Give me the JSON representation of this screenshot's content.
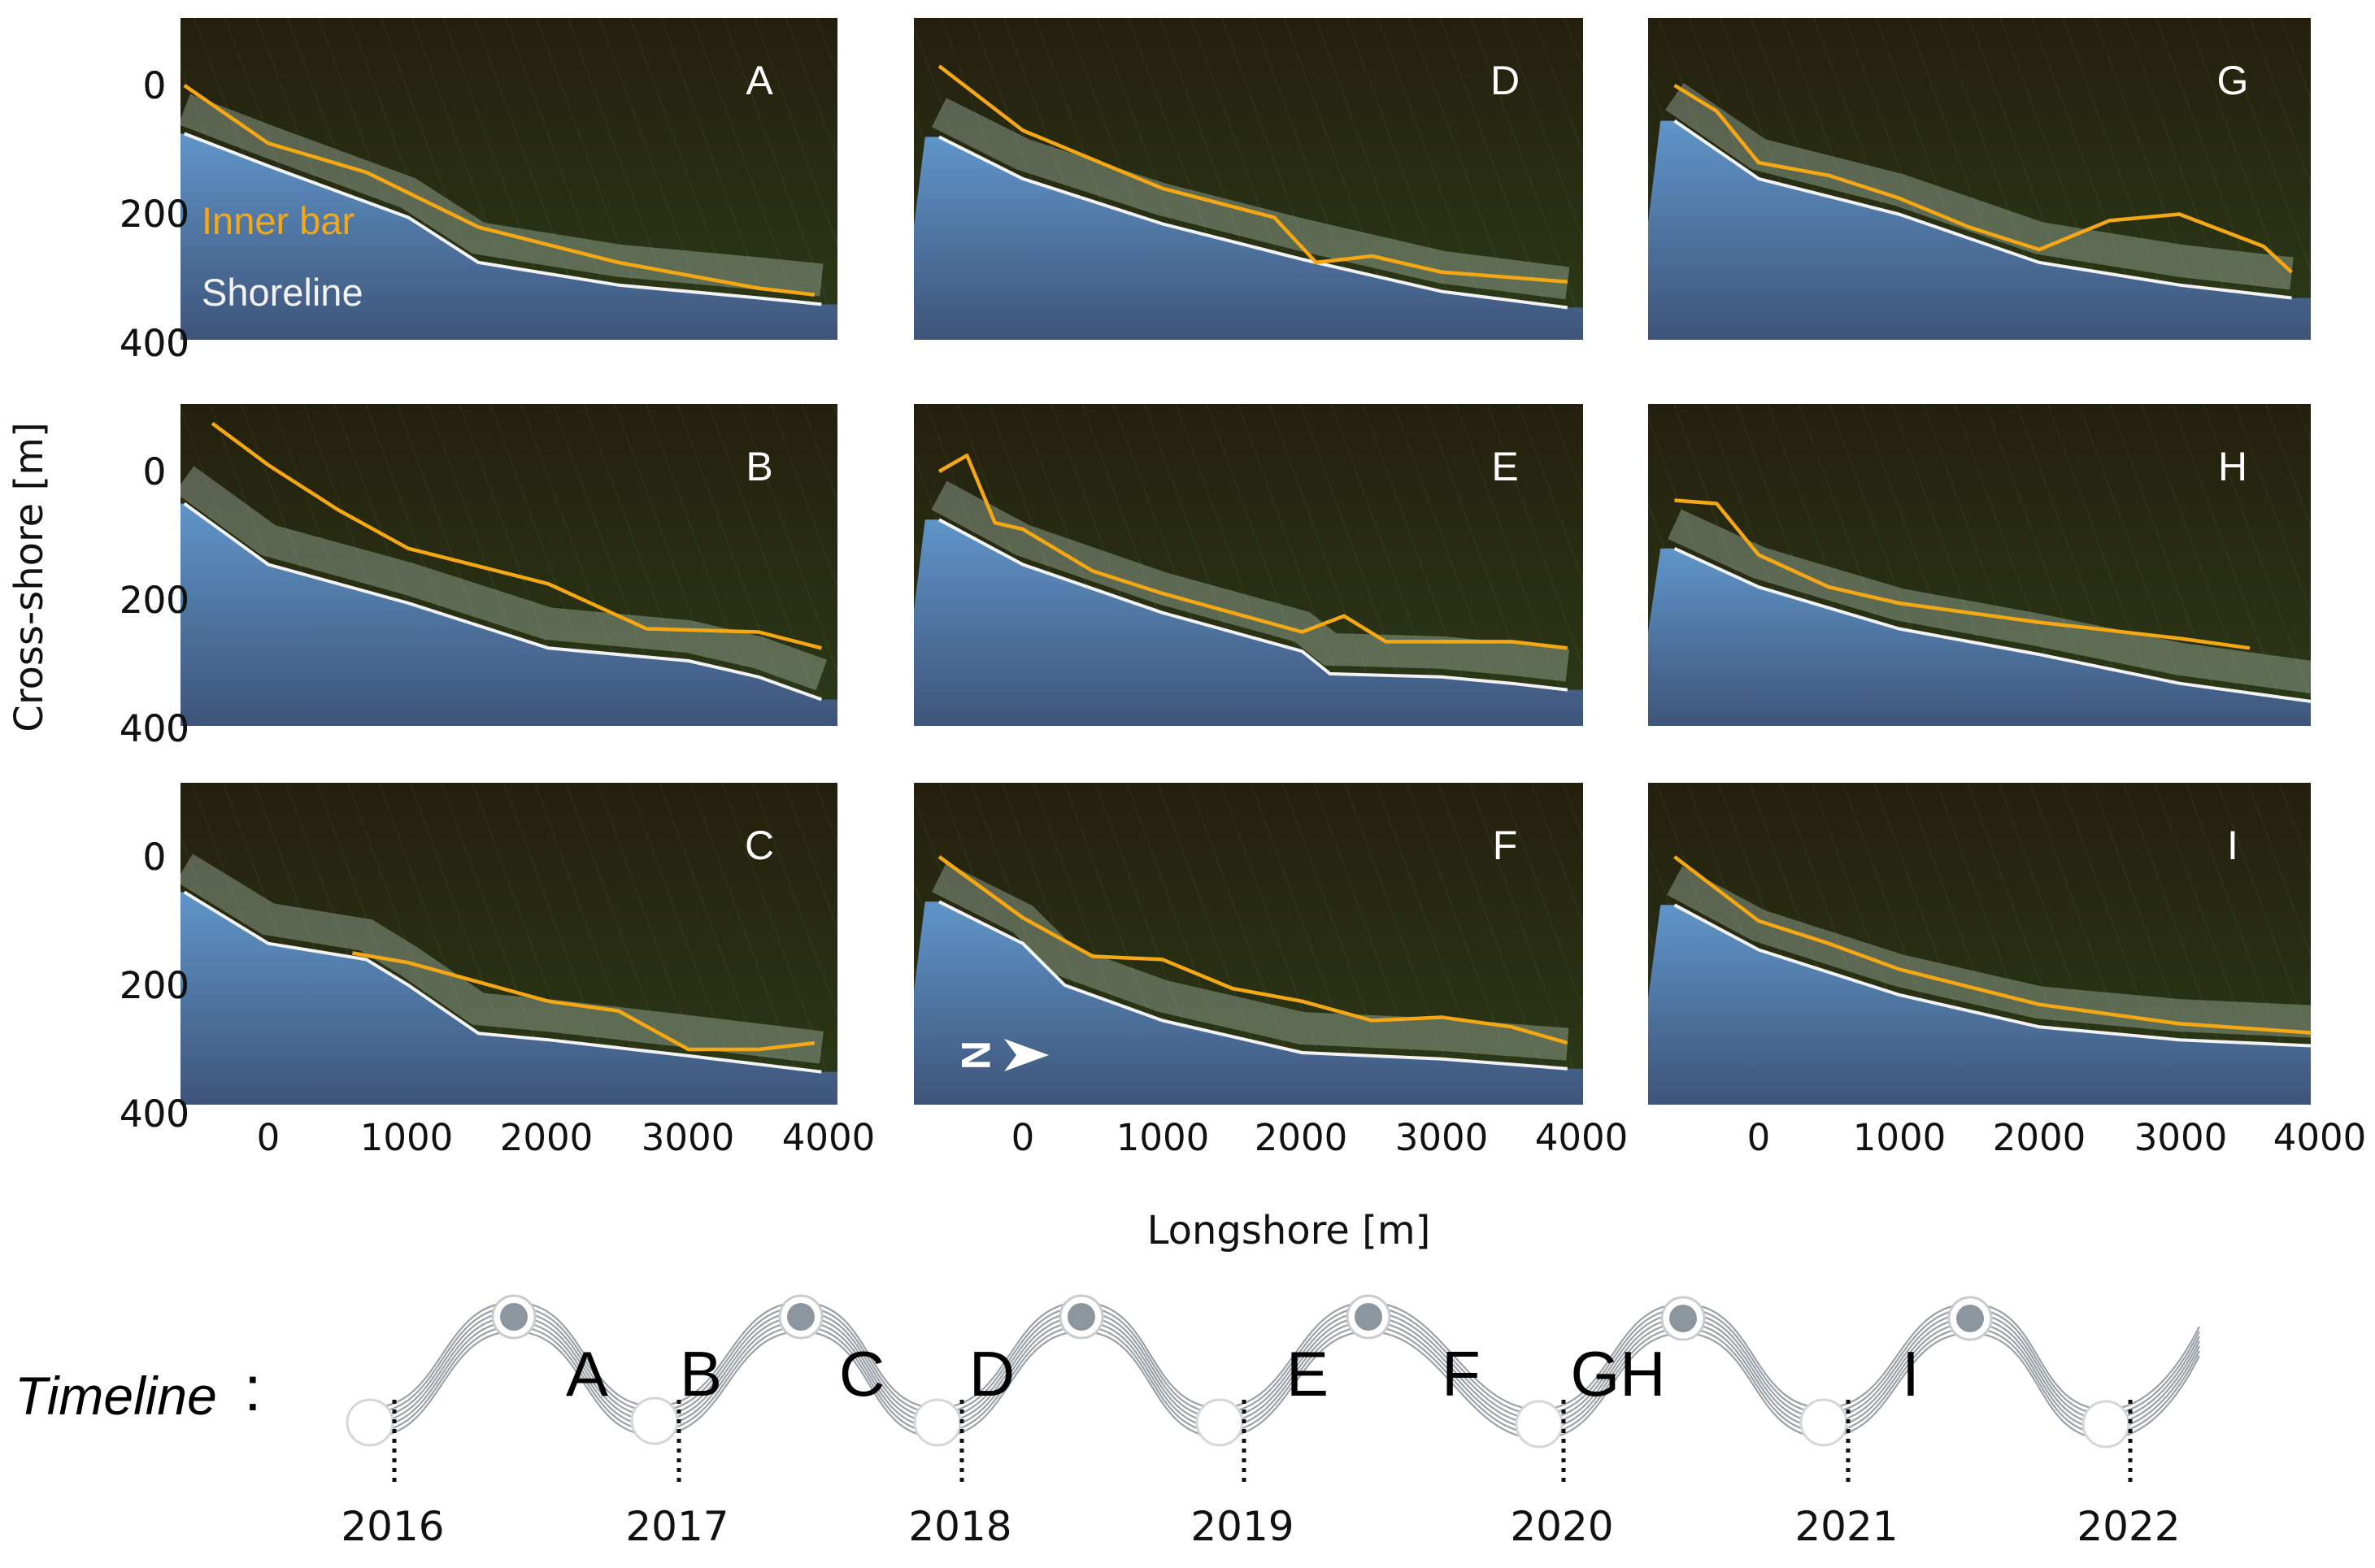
{
  "chart_data": {
    "type": "line",
    "title": "",
    "xlabel": "Longshore [m]",
    "ylabel": "Cross-shore [m]",
    "xlim": [
      -600,
      4000
    ],
    "ylim": [
      -100,
      400
    ],
    "y_inverted": true,
    "x_ticks": [
      0,
      1000,
      2000,
      3000,
      4000
    ],
    "y_ticks": [
      0,
      200,
      400
    ],
    "legend": [
      {
        "label": "Inner bar",
        "color": "#f5a814"
      },
      {
        "label": "Shoreline",
        "color": "#f2f2f2"
      }
    ],
    "panels": [
      {
        "label": "A",
        "bar": [
          [
            -600,
            0
          ],
          [
            0,
            90
          ],
          [
            700,
            135
          ],
          [
            1500,
            220
          ],
          [
            2500,
            275
          ],
          [
            3500,
            315
          ],
          [
            3900,
            325
          ]
        ],
        "shoreline": [
          [
            -600,
            75
          ],
          [
            0,
            125
          ],
          [
            1000,
            205
          ],
          [
            1500,
            275
          ],
          [
            2500,
            310
          ],
          [
            3500,
            330
          ],
          [
            3950,
            340
          ]
        ]
      },
      {
        "label": "B",
        "bar": [
          [
            -400,
            -75
          ],
          [
            0,
            -10
          ],
          [
            500,
            60
          ],
          [
            1000,
            120
          ],
          [
            2000,
            175
          ],
          [
            2700,
            245
          ],
          [
            3500,
            250
          ],
          [
            3950,
            275
          ]
        ],
        "shoreline": [
          [
            -600,
            50
          ],
          [
            0,
            145
          ],
          [
            1000,
            205
          ],
          [
            2000,
            275
          ],
          [
            3000,
            295
          ],
          [
            3500,
            320
          ],
          [
            3950,
            355
          ]
        ]
      },
      {
        "label": "C",
        "bar": [
          [
            600,
            150
          ],
          [
            1000,
            165
          ],
          [
            2000,
            225
          ],
          [
            2500,
            240
          ],
          [
            3000,
            300
          ],
          [
            3500,
            300
          ],
          [
            3900,
            290
          ]
        ],
        "shoreline": [
          [
            -600,
            55
          ],
          [
            0,
            135
          ],
          [
            700,
            160
          ],
          [
            1000,
            200
          ],
          [
            1500,
            275
          ],
          [
            2000,
            285
          ],
          [
            3000,
            310
          ],
          [
            3950,
            335
          ]
        ]
      },
      {
        "label": "D",
        "bar": [
          [
            -600,
            -30
          ],
          [
            0,
            70
          ],
          [
            1000,
            160
          ],
          [
            1800,
            205
          ],
          [
            2100,
            275
          ],
          [
            2500,
            265
          ],
          [
            3000,
            290
          ],
          [
            3900,
            305
          ]
        ],
        "shoreline": [
          [
            -600,
            80
          ],
          [
            0,
            145
          ],
          [
            1000,
            215
          ],
          [
            2000,
            270
          ],
          [
            3000,
            320
          ],
          [
            3900,
            345
          ]
        ]
      },
      {
        "label": "E",
        "bar": [
          [
            -600,
            0
          ],
          [
            -400,
            -25
          ],
          [
            -200,
            80
          ],
          [
            0,
            90
          ],
          [
            500,
            155
          ],
          [
            1000,
            190
          ],
          [
            1500,
            220
          ],
          [
            2000,
            250
          ],
          [
            2300,
            225
          ],
          [
            2600,
            265
          ],
          [
            3000,
            265
          ],
          [
            3500,
            265
          ],
          [
            3900,
            275
          ]
        ],
        "shoreline": [
          [
            -600,
            75
          ],
          [
            0,
            145
          ],
          [
            1000,
            220
          ],
          [
            2000,
            280
          ],
          [
            2200,
            315
          ],
          [
            3000,
            320
          ],
          [
            3500,
            330
          ],
          [
            3900,
            340
          ]
        ]
      },
      {
        "label": "F",
        "bar": [
          [
            -600,
            0
          ],
          [
            0,
            95
          ],
          [
            500,
            155
          ],
          [
            1000,
            160
          ],
          [
            1500,
            205
          ],
          [
            2000,
            225
          ],
          [
            2500,
            255
          ],
          [
            3000,
            250
          ],
          [
            3500,
            265
          ],
          [
            3900,
            290
          ]
        ],
        "shoreline": [
          [
            -600,
            70
          ],
          [
            0,
            135
          ],
          [
            300,
            200
          ],
          [
            1000,
            255
          ],
          [
            2000,
            305
          ],
          [
            3000,
            315
          ],
          [
            3900,
            330
          ]
        ]
      },
      {
        "label": "G",
        "bar": [
          [
            -600,
            0
          ],
          [
            -300,
            40
          ],
          [
            0,
            120
          ],
          [
            500,
            140
          ],
          [
            1000,
            175
          ],
          [
            1500,
            220
          ],
          [
            2000,
            255
          ],
          [
            2500,
            210
          ],
          [
            3000,
            200
          ],
          [
            3600,
            250
          ],
          [
            3800,
            290
          ]
        ],
        "shoreline": [
          [
            -600,
            55
          ],
          [
            0,
            145
          ],
          [
            1000,
            200
          ],
          [
            2000,
            275
          ],
          [
            3000,
            310
          ],
          [
            3800,
            330
          ]
        ]
      },
      {
        "label": "H",
        "bar": [
          [
            -600,
            45
          ],
          [
            -300,
            50
          ],
          [
            0,
            130
          ],
          [
            500,
            180
          ],
          [
            1000,
            205
          ],
          [
            2000,
            235
          ],
          [
            3000,
            260
          ],
          [
            3500,
            275
          ]
        ],
        "shoreline": [
          [
            -600,
            120
          ],
          [
            0,
            180
          ],
          [
            1000,
            245
          ],
          [
            2000,
            285
          ],
          [
            3000,
            330
          ],
          [
            4000,
            360
          ]
        ]
      },
      {
        "label": "I",
        "bar": [
          [
            -600,
            0
          ],
          [
            0,
            100
          ],
          [
            500,
            135
          ],
          [
            1000,
            175
          ],
          [
            2000,
            230
          ],
          [
            3000,
            260
          ],
          [
            4000,
            275
          ]
        ],
        "shoreline": [
          [
            -600,
            75
          ],
          [
            0,
            145
          ],
          [
            1000,
            215
          ],
          [
            2000,
            265
          ],
          [
            3000,
            285
          ],
          [
            4000,
            295
          ]
        ]
      }
    ]
  },
  "timeline": {
    "title": "Timeline",
    "separator": ":",
    "years": [
      "2016",
      "2017",
      "2018",
      "2019",
      "2020",
      "2021",
      "2022"
    ],
    "events": [
      {
        "label": "A"
      },
      {
        "label": "B"
      },
      {
        "label": "C"
      },
      {
        "label": "D"
      },
      {
        "label": "E"
      },
      {
        "label": "F"
      },
      {
        "label": "GH"
      },
      {
        "label": "I"
      }
    ]
  },
  "compass": {
    "label": "N"
  },
  "colors": {
    "inner_bar": "#f5a814",
    "shoreline": "#f2f2f2",
    "sea": "#1f2a12",
    "beach": "#5a86b8",
    "timeline_wave": "#9aa1a8",
    "timeline_node": "#8c969e"
  }
}
